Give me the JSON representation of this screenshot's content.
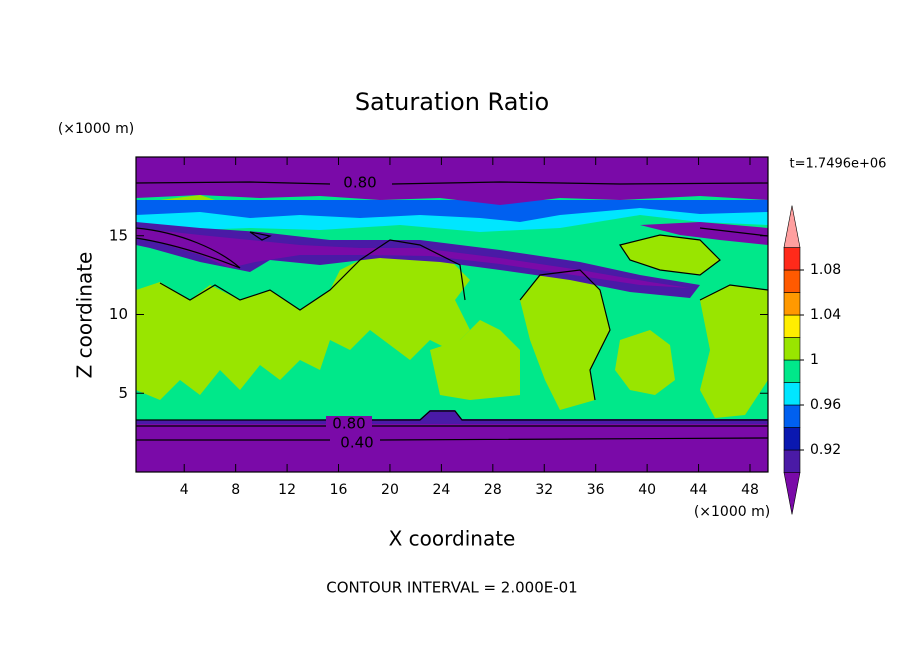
{
  "chart_data": {
    "type": "contour",
    "title": "Saturation Ratio",
    "xlabel": "X coordinate",
    "ylabel": "Z coordinate",
    "x_unit": "(×1000 m)",
    "y_unit": "(×1000 m)",
    "time_label": "t=1.7496e+06",
    "footer": "CONTOUR INTERVAL = 2.000E-01",
    "xlim": [
      0.25,
      49.4
    ],
    "ylim": [
      0,
      20
    ],
    "xticks": [
      4,
      8,
      12,
      16,
      20,
      24,
      28,
      32,
      36,
      40,
      44,
      48
    ],
    "yticks": [
      5,
      10,
      15
    ],
    "contour_labels": [
      {
        "value": 0.8,
        "label": "0.80"
      },
      {
        "value": 0.8,
        "label": "0.80"
      },
      {
        "value": 0.4,
        "label": "0.40"
      }
    ],
    "colorbar": {
      "levels": [
        0.9,
        0.92,
        0.94,
        0.96,
        0.98,
        1,
        1.02,
        1.04,
        1.06,
        1.08,
        1.1
      ],
      "colors": [
        "#7a0aa8",
        "#4a1aa6",
        "#0a18b0",
        "#0060f0",
        "#00e6ff",
        "#00e88a",
        "#99e500",
        "#ffee00",
        "#ff9900",
        "#ff5a00",
        "#ff2a1a",
        "#ff9f9f"
      ],
      "ticks": [
        0.92,
        0.96,
        1,
        1.04,
        1.08
      ]
    }
  }
}
